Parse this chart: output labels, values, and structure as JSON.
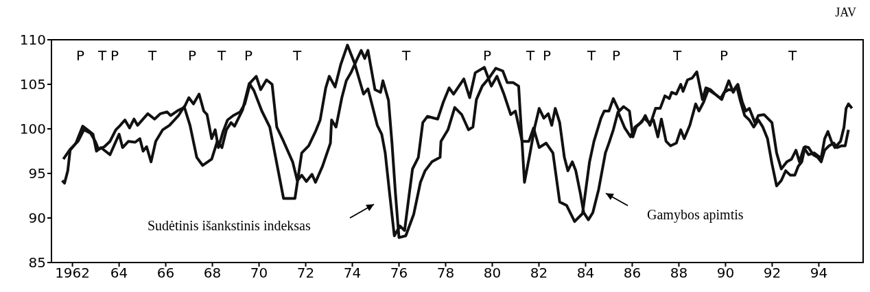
{
  "chart_data": {
    "type": "line",
    "title": "JAV",
    "xlim": [
      1961.1,
      1995.9
    ],
    "ylim": [
      85,
      110
    ],
    "xticks": [
      1962,
      {
        "value": 1964,
        "label": "64"
      },
      {
        "value": 1966,
        "label": "66"
      },
      {
        "value": 1968,
        "label": "68"
      },
      {
        "value": 1970,
        "label": "70"
      },
      {
        "value": 1972,
        "label": "72"
      },
      {
        "value": 1974,
        "label": "74"
      },
      {
        "value": 1976,
        "label": "76"
      },
      {
        "value": 1978,
        "label": "78"
      },
      {
        "value": 1980,
        "label": "80"
      },
      {
        "value": 1982,
        "label": "82"
      },
      {
        "value": 1984,
        "label": "84"
      },
      {
        "value": 1986,
        "label": "86"
      },
      {
        "value": 1988,
        "label": "88"
      },
      {
        "value": 1990,
        "label": "90"
      },
      {
        "value": 1992,
        "label": "92"
      },
      {
        "value": 1994,
        "label": "94"
      }
    ],
    "yticks": [
      85,
      90,
      95,
      100,
      105,
      110
    ],
    "grid": false,
    "legend": false,
    "marker": "none",
    "line_style": "solid",
    "series": [
      {
        "name": "Sudėtinis išankstinis indeksas",
        "color": "#111111",
        "x": [
          1961.56,
          1961.66,
          1961.8,
          1961.9,
          1962.15,
          1962.44,
          1962.69,
          1962.88,
          1963.03,
          1963.22,
          1963.61,
          1964.0,
          1964.15,
          1964.4,
          1964.69,
          1964.89,
          1965.03,
          1965.18,
          1965.37,
          1965.57,
          1965.87,
          1966.16,
          1966.55,
          1966.79,
          1967.04,
          1967.33,
          1967.58,
          1967.97,
          1968.21,
          1968.41,
          1968.6,
          1968.8,
          1968.95,
          1969.29,
          1969.58,
          1969.78,
          1970.12,
          1970.46,
          1971.05,
          1971.54,
          1971.83,
          1972.13,
          1972.42,
          1972.62,
          1972.86,
          1973.01,
          1973.26,
          1973.5,
          1973.79,
          1974.09,
          1974.48,
          1974.67,
          1975.07,
          1975.26,
          1975.41,
          1975.6,
          1975.8,
          1976.04,
          1976.24,
          1976.44,
          1976.58,
          1976.83,
          1977.02,
          1977.22,
          1977.66,
          1977.9,
          1978.15,
          1978.34,
          1978.78,
          1979.03,
          1979.27,
          1979.66,
          1979.96,
          1980.2,
          1980.5,
          1980.79,
          1980.99,
          1981.28,
          1981.57,
          1981.77,
          1982.01,
          1982.31,
          1982.6,
          1982.89,
          1983.19,
          1983.53,
          1983.87,
          1984.17,
          1984.36,
          1984.66,
          1984.8,
          1985.0,
          1985.19,
          1985.44,
          1985.63,
          1985.88,
          1986.03,
          1986.17,
          1986.42,
          1986.56,
          1986.76,
          1987.0,
          1987.2,
          1987.4,
          1987.59,
          1987.69,
          1987.89,
          1988.08,
          1988.18,
          1988.37,
          1988.57,
          1988.77,
          1989.01,
          1989.16,
          1989.35,
          1989.55,
          1989.79,
          1989.94,
          1990.14,
          1990.33,
          1990.53,
          1990.72,
          1990.87,
          1991.02,
          1991.26,
          1991.41,
          1991.65,
          1991.99,
          1992.19,
          1992.39,
          1992.63,
          1992.83,
          1993.02,
          1993.17,
          1993.36,
          1993.56,
          1993.8,
          1994.1,
          1994.25,
          1994.39,
          1994.54,
          1994.69,
          1994.93,
          1995.08,
          1995.17,
          1995.27,
          1995.42
        ],
        "values": [
          94.2,
          93.9,
          95.3,
          97.6,
          98.4,
          100.3,
          99.8,
          99.4,
          97.5,
          97.9,
          97.1,
          99.4,
          97.9,
          98.6,
          98.5,
          98.9,
          97.5,
          98.0,
          96.3,
          98.6,
          99.9,
          100.4,
          101.5,
          102.5,
          100.4,
          96.8,
          95.9,
          96.6,
          98.6,
          97.9,
          99.9,
          100.7,
          100.3,
          102.1,
          105.1,
          104.3,
          102.0,
          100.2,
          92.2,
          92.2,
          97.3,
          98.1,
          99.7,
          101.0,
          104.6,
          105.9,
          104.7,
          107.2,
          109.4,
          107.4,
          103.9,
          104.5,
          100.4,
          99.4,
          97.3,
          92.7,
          88.0,
          89.1,
          88.6,
          92.7,
          95.5,
          96.8,
          100.7,
          101.4,
          101.1,
          103.0,
          104.6,
          103.9,
          105.6,
          103.5,
          106.3,
          106.9,
          104.8,
          105.9,
          103.9,
          101.6,
          102.0,
          98.6,
          98.6,
          100.1,
          97.9,
          98.4,
          97.3,
          91.8,
          91.4,
          89.6,
          90.5,
          96.3,
          98.6,
          101.2,
          102.0,
          102.0,
          103.4,
          102.0,
          102.5,
          102.0,
          99.1,
          100.2,
          100.8,
          101.5,
          100.4,
          102.3,
          102.3,
          103.7,
          103.4,
          104.1,
          103.9,
          105.0,
          104.2,
          105.5,
          105.7,
          106.4,
          103.3,
          104.6,
          104.4,
          103.9,
          103.4,
          104.1,
          104.4,
          104.3,
          105.0,
          103.0,
          102.0,
          102.3,
          100.7,
          101.5,
          101.6,
          100.7,
          97.3,
          95.5,
          96.3,
          96.6,
          97.6,
          96.3,
          97.9,
          97.1,
          97.3,
          96.7,
          98.9,
          99.7,
          98.6,
          97.9,
          98.6,
          100.2,
          102.3,
          102.8,
          102.3
        ]
      },
      {
        "name": "Gamybos apimtis",
        "color": "#111111",
        "x": [
          1961.61,
          1961.9,
          1962.24,
          1962.49,
          1962.78,
          1962.98,
          1963.12,
          1963.37,
          1963.61,
          1963.86,
          1964.05,
          1964.25,
          1964.45,
          1964.64,
          1964.79,
          1965.23,
          1965.52,
          1965.77,
          1966.06,
          1966.21,
          1966.55,
          1966.79,
          1966.99,
          1967.19,
          1967.43,
          1967.63,
          1967.77,
          1967.97,
          1968.12,
          1968.26,
          1968.46,
          1968.65,
          1968.9,
          1969.19,
          1969.39,
          1969.63,
          1969.88,
          1970.07,
          1970.32,
          1970.56,
          1970.76,
          1971.05,
          1971.44,
          1971.64,
          1971.83,
          1972.03,
          1972.27,
          1972.42,
          1972.72,
          1973.06,
          1973.11,
          1973.3,
          1973.55,
          1973.74,
          1973.94,
          1974.18,
          1974.38,
          1974.53,
          1974.67,
          1974.97,
          1975.21,
          1975.31,
          1975.55,
          1975.7,
          1975.85,
          1976.0,
          1976.29,
          1976.63,
          1976.92,
          1977.12,
          1977.41,
          1977.76,
          1977.8,
          1978.1,
          1978.39,
          1978.69,
          1978.98,
          1979.17,
          1979.32,
          1979.57,
          1979.86,
          1980.15,
          1980.45,
          1980.64,
          1980.89,
          1981.13,
          1981.38,
          1981.62,
          1981.82,
          1982.01,
          1982.21,
          1982.4,
          1982.55,
          1982.7,
          1982.89,
          1983.09,
          1983.24,
          1983.43,
          1983.58,
          1983.78,
          1983.92,
          1984.12,
          1984.31,
          1984.56,
          1984.85,
          1985.0,
          1985.19,
          1985.39,
          1985.68,
          1985.93,
          1986.12,
          1986.32,
          1986.52,
          1986.71,
          1986.91,
          1987.1,
          1987.25,
          1987.45,
          1987.64,
          1987.89,
          1988.08,
          1988.23,
          1988.47,
          1988.72,
          1988.86,
          1989.06,
          1989.26,
          1989.55,
          1989.84,
          1990.14,
          1990.33,
          1990.48,
          1990.63,
          1990.82,
          1991.02,
          1991.21,
          1991.41,
          1991.6,
          1991.8,
          1991.99,
          1992.19,
          1992.39,
          1992.58,
          1992.78,
          1992.97,
          1993.12,
          1993.27,
          1993.41,
          1993.56,
          1993.76,
          1993.95,
          1994.1,
          1994.25,
          1994.44,
          1994.64,
          1994.78,
          1994.98,
          1995.13,
          1995.27
        ],
        "values": [
          96.6,
          97.7,
          98.6,
          99.9,
          99.5,
          98.6,
          97.7,
          98.0,
          98.6,
          99.9,
          100.4,
          101.0,
          100.1,
          101.1,
          100.4,
          101.7,
          101.1,
          101.7,
          101.9,
          101.5,
          102.1,
          102.4,
          103.5,
          102.8,
          103.9,
          102.0,
          101.6,
          98.9,
          99.9,
          97.9,
          99.7,
          101.0,
          101.5,
          101.9,
          102.8,
          105.2,
          105.9,
          104.4,
          105.5,
          105.0,
          100.2,
          98.6,
          96.3,
          94.2,
          94.8,
          94.1,
          94.9,
          94.0,
          95.8,
          98.4,
          101.0,
          100.2,
          103.5,
          105.4,
          106.3,
          107.7,
          108.8,
          107.9,
          108.8,
          104.4,
          104.1,
          105.4,
          103.2,
          98.4,
          92.7,
          87.8,
          88.0,
          90.4,
          94.0,
          95.3,
          96.3,
          96.8,
          98.6,
          99.9,
          102.4,
          101.6,
          99.9,
          100.2,
          103.3,
          104.8,
          105.7,
          106.8,
          106.5,
          105.2,
          105.2,
          104.8,
          94.0,
          97.3,
          100.2,
          102.3,
          101.2,
          101.7,
          100.4,
          102.3,
          100.7,
          96.8,
          95.3,
          96.3,
          95.3,
          92.7,
          90.6,
          89.8,
          90.6,
          93.2,
          97.3,
          98.4,
          99.9,
          101.9,
          100.1,
          99.1,
          100.2,
          100.6,
          101.2,
          100.7,
          101.0,
          99.1,
          101.1,
          98.6,
          98.1,
          98.4,
          99.9,
          98.9,
          100.4,
          102.8,
          102.0,
          103.0,
          104.4,
          103.9,
          103.3,
          105.4,
          104.1,
          104.8,
          103.2,
          101.5,
          101.0,
          100.2,
          101.0,
          100.2,
          98.9,
          96.1,
          93.6,
          94.2,
          95.3,
          94.8,
          94.8,
          95.8,
          96.3,
          98.0,
          97.9,
          97.1,
          96.8,
          96.3,
          97.6,
          98.1,
          98.4,
          97.9,
          98.1,
          98.1,
          99.9
        ]
      }
    ],
    "annotations": [
      "P",
      "T",
      "P",
      "T",
      "P",
      "T",
      "P",
      "T",
      "T",
      "P",
      "T",
      "P",
      "T",
      "P",
      "T",
      "P",
      "T"
    ]
  }
}
